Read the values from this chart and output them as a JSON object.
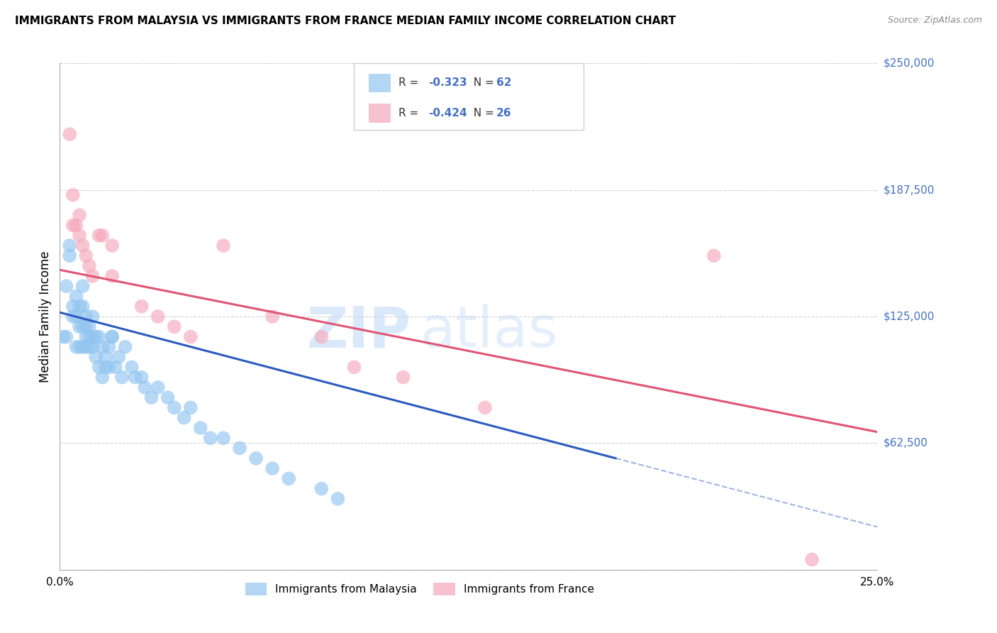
{
  "title": "IMMIGRANTS FROM MALAYSIA VS IMMIGRANTS FROM FRANCE MEDIAN FAMILY INCOME CORRELATION CHART",
  "source": "Source: ZipAtlas.com",
  "ylabel": "Median Family Income",
  "xlim": [
    0.0,
    0.25
  ],
  "ylim": [
    0,
    250000
  ],
  "yticks": [
    0,
    62500,
    125000,
    187500,
    250000
  ],
  "ytick_labels": [
    "",
    "$62,500",
    "$125,000",
    "$187,500",
    "$250,000"
  ],
  "xticks": [
    0.0,
    0.05,
    0.1,
    0.15,
    0.2,
    0.25
  ],
  "xtick_labels": [
    "0.0%",
    "",
    "",
    "",
    "",
    "25.0%"
  ],
  "malaysia_color": "#92C5F0",
  "france_color": "#F5A8BC",
  "malaysia_line_color": "#2B5BBF",
  "france_line_color": "#E05575",
  "R_malaysia": -0.323,
  "N_malaysia": 62,
  "R_france": -0.424,
  "N_france": 26,
  "malaysia_x": [
    0.001,
    0.002,
    0.002,
    0.003,
    0.003,
    0.004,
    0.004,
    0.005,
    0.005,
    0.005,
    0.006,
    0.006,
    0.006,
    0.007,
    0.007,
    0.007,
    0.007,
    0.008,
    0.008,
    0.008,
    0.008,
    0.009,
    0.009,
    0.009,
    0.01,
    0.01,
    0.01,
    0.011,
    0.011,
    0.012,
    0.012,
    0.013,
    0.013,
    0.014,
    0.014,
    0.015,
    0.015,
    0.016,
    0.016,
    0.017,
    0.018,
    0.019,
    0.02,
    0.022,
    0.023,
    0.025,
    0.026,
    0.028,
    0.03,
    0.033,
    0.035,
    0.038,
    0.04,
    0.043,
    0.046,
    0.05,
    0.055,
    0.06,
    0.065,
    0.07,
    0.08,
    0.085
  ],
  "malaysia_y": [
    115000,
    140000,
    115000,
    155000,
    160000,
    130000,
    125000,
    135000,
    125000,
    110000,
    130000,
    120000,
    110000,
    140000,
    130000,
    120000,
    110000,
    125000,
    120000,
    115000,
    110000,
    120000,
    110000,
    115000,
    125000,
    115000,
    110000,
    115000,
    105000,
    115000,
    100000,
    110000,
    95000,
    105000,
    100000,
    110000,
    100000,
    115000,
    115000,
    100000,
    105000,
    95000,
    110000,
    100000,
    95000,
    95000,
    90000,
    85000,
    90000,
    85000,
    80000,
    75000,
    80000,
    70000,
    65000,
    65000,
    60000,
    55000,
    50000,
    45000,
    40000,
    35000
  ],
  "france_x": [
    0.003,
    0.004,
    0.004,
    0.005,
    0.006,
    0.006,
    0.007,
    0.008,
    0.009,
    0.01,
    0.012,
    0.013,
    0.016,
    0.016,
    0.025,
    0.03,
    0.035,
    0.04,
    0.05,
    0.065,
    0.08,
    0.09,
    0.105,
    0.13,
    0.2,
    0.23
  ],
  "france_y": [
    215000,
    170000,
    185000,
    170000,
    165000,
    175000,
    160000,
    155000,
    150000,
    145000,
    165000,
    165000,
    160000,
    145000,
    130000,
    125000,
    120000,
    115000,
    160000,
    125000,
    115000,
    100000,
    95000,
    80000,
    155000,
    5000
  ],
  "malaysia_line_x0": 0.0,
  "malaysia_line_y0": 127000,
  "malaysia_line_x1": 0.17,
  "malaysia_line_y1": 55000,
  "france_line_x0": 0.0,
  "france_line_y0": 148000,
  "france_line_x1": 0.25,
  "france_line_y1": 68000,
  "watermark_zip": "ZIP",
  "watermark_atlas": "atlas",
  "background_color": "#ffffff",
  "grid_color": "#cccccc",
  "blue_label_color": "#4472C4"
}
